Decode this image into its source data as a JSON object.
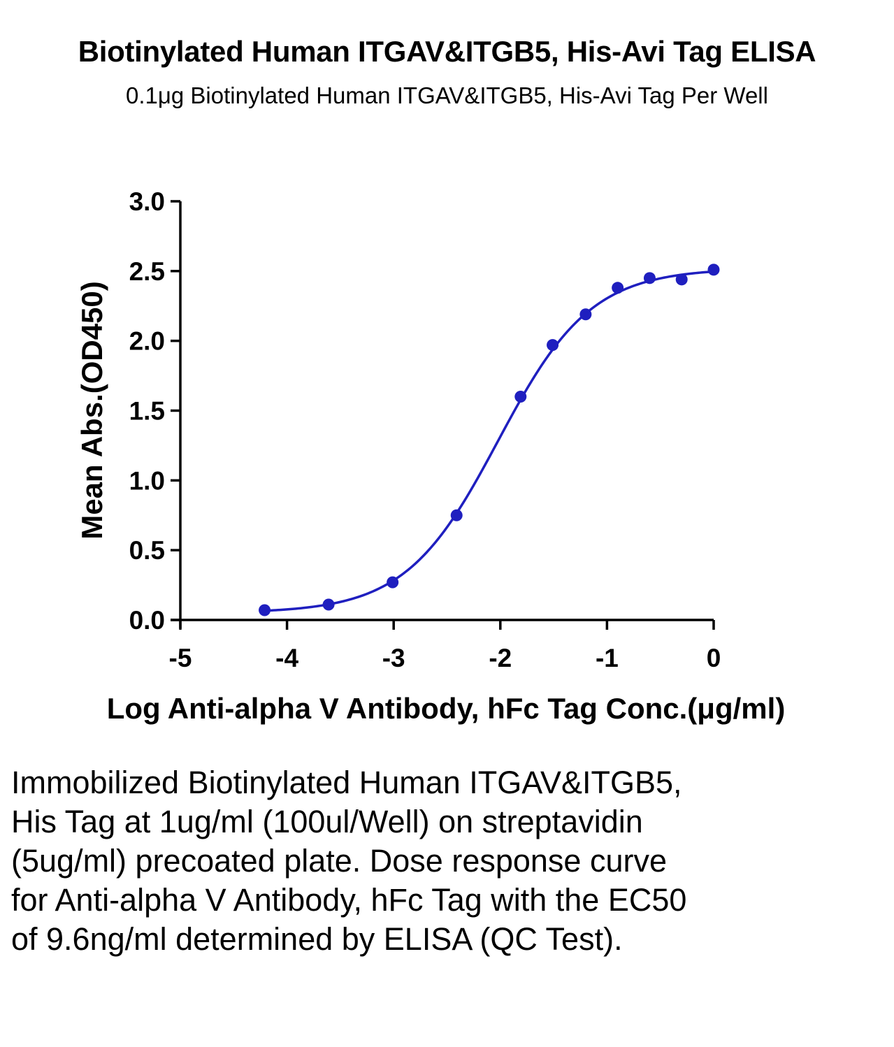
{
  "chart_data": {
    "type": "scatter",
    "title": "Biotinylated Human ITGAV&ITGB5, His-Avi Tag ELISA",
    "subtitle": "0.1μg Biotinylated Human ITGAV&ITGB5, His-Avi Tag Per Well",
    "xlabel": "Log Anti-alpha V Antibody, hFc Tag Conc.(μg/ml)",
    "ylabel": "Mean Abs.(OD450)",
    "xlim": [
      -5,
      0
    ],
    "ylim": [
      0,
      3
    ],
    "xticks": [
      "-5",
      "-4",
      "-3",
      "-2",
      "-1",
      "0"
    ],
    "yticks": [
      "0.0",
      "0.5",
      "1.0",
      "1.5",
      "2.0",
      "2.5",
      "3.0"
    ],
    "grid": false,
    "color": "#1f1fbf",
    "series": [
      {
        "points": [
          {
            "x": -4.21,
            "y": 0.07
          },
          {
            "x": -3.61,
            "y": 0.11
          },
          {
            "x": -3.01,
            "y": 0.27
          },
          {
            "x": -2.41,
            "y": 0.75
          },
          {
            "x": -1.81,
            "y": 1.6
          },
          {
            "x": -1.51,
            "y": 1.97
          },
          {
            "x": -1.2,
            "y": 2.19
          },
          {
            "x": -0.9,
            "y": 2.38
          },
          {
            "x": -0.6,
            "y": 2.45
          },
          {
            "x": -0.3,
            "y": 2.44
          },
          {
            "x": 0.0,
            "y": 2.51
          }
        ],
        "fit": {
          "model": "4PL",
          "bottom": 0.05,
          "top": 2.52,
          "logEC50": -2.02,
          "hill": 1.0
        }
      }
    ]
  },
  "caption": "Immobilized Biotinylated Human ITGAV&ITGB5, His Tag at 1ug/ml (100ul/Well) on streptavidin (5ug/ml) precoated plate. Dose response curve for Anti-alpha V Antibody, hFc Tag with the EC50 of 9.6ng/ml determined by ELISA (QC Test)."
}
